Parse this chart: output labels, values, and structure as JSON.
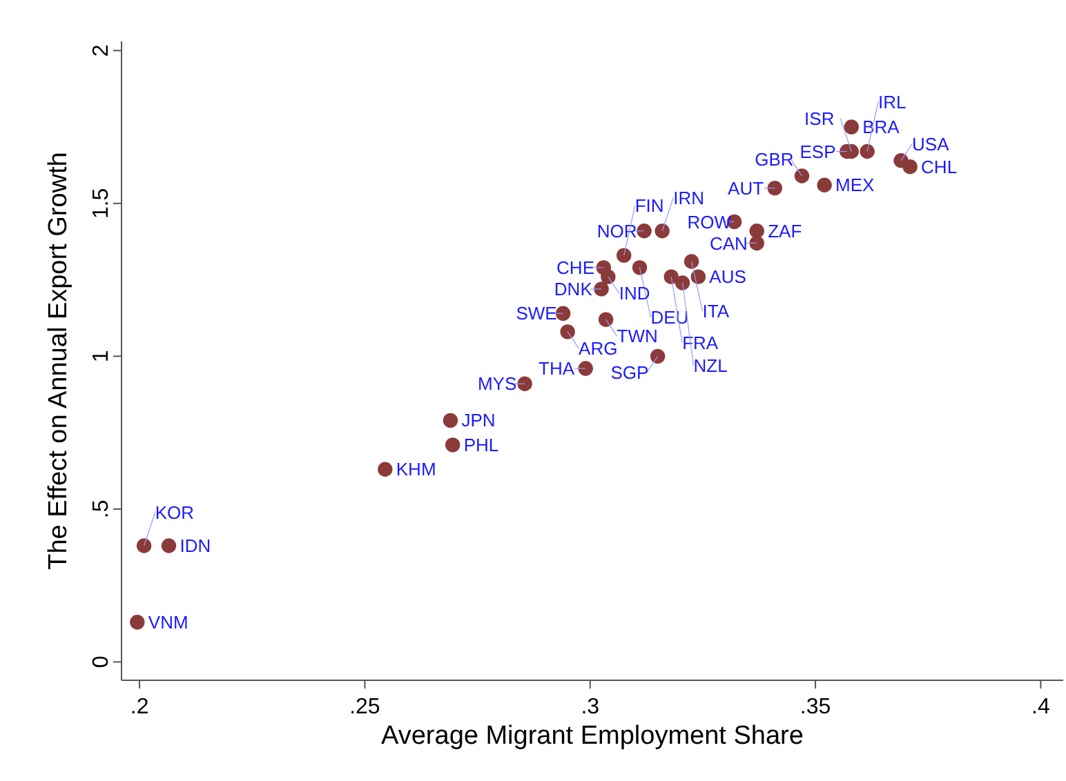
{
  "chart_data": {
    "type": "scatter",
    "xlabel": "Average Migrant Employment Share",
    "ylabel": "The Effect on Annual Export Growth",
    "xlim": [
      0.196,
      0.405
    ],
    "ylim": [
      -0.06,
      2.03
    ],
    "xticks": [
      {
        "value": 0.2,
        "label": ".2"
      },
      {
        "value": 0.25,
        "label": ".25"
      },
      {
        "value": 0.3,
        "label": ".3"
      },
      {
        "value": 0.35,
        "label": ".35"
      },
      {
        "value": 0.4,
        "label": ".4"
      }
    ],
    "yticks": [
      0,
      {
        "value": 0.5,
        "label": ".5"
      },
      1,
      1.5,
      2
    ],
    "grid": false,
    "marker": "circle",
    "series": [
      {
        "color": "#8b3a3a",
        "x": [
          0.358,
          0.357,
          0.358,
          0.3615,
          0.369,
          0.371,
          0.347,
          0.352,
          0.341,
          0.332,
          0.337,
          0.337,
          0.312,
          0.316,
          0.3075,
          0.3225,
          0.303,
          0.311,
          0.304,
          0.318,
          0.324,
          0.3205,
          0.3025,
          0.294,
          0.3035,
          0.295,
          0.315,
          0.299,
          0.2855,
          0.269,
          0.2695,
          0.2545,
          0.201,
          0.2065,
          0.1995
        ],
        "values": [
          1.75,
          1.67,
          1.67,
          1.67,
          1.64,
          1.62,
          1.59,
          1.56,
          1.55,
          1.44,
          1.41,
          1.37,
          1.41,
          1.41,
          1.33,
          1.31,
          1.29,
          1.29,
          1.26,
          1.26,
          1.26,
          1.24,
          1.22,
          1.14,
          1.12,
          1.08,
          1.0,
          0.96,
          0.91,
          0.79,
          0.71,
          0.63,
          0.38,
          0.38,
          0.13
        ]
      }
    ],
    "annotations": [
      {
        "text": "BRA",
        "x": 0.358,
        "y": 1.75
      },
      {
        "text": "ESP",
        "x": 0.357,
        "y": 1.67
      },
      {
        "text": "ISR",
        "x": 0.358,
        "y": 1.67
      },
      {
        "text": "IRL",
        "x": 0.3615,
        "y": 1.67
      },
      {
        "text": "USA",
        "x": 0.369,
        "y": 1.64
      },
      {
        "text": "CHL",
        "x": 0.371,
        "y": 1.62
      },
      {
        "text": "GBR",
        "x": 0.347,
        "y": 1.59
      },
      {
        "text": "MEX",
        "x": 0.352,
        "y": 1.56
      },
      {
        "text": "AUT",
        "x": 0.341,
        "y": 1.55
      },
      {
        "text": "ROW",
        "x": 0.332,
        "y": 1.44
      },
      {
        "text": "ZAF",
        "x": 0.337,
        "y": 1.41
      },
      {
        "text": "CAN",
        "x": 0.337,
        "y": 1.37
      },
      {
        "text": "NOR",
        "x": 0.312,
        "y": 1.41
      },
      {
        "text": "IRN",
        "x": 0.316,
        "y": 1.41
      },
      {
        "text": "FIN",
        "x": 0.3075,
        "y": 1.33
      },
      {
        "text": "ITA",
        "x": 0.3225,
        "y": 1.31
      },
      {
        "text": "CHE",
        "x": 0.303,
        "y": 1.29
      },
      {
        "text": "DEU",
        "x": 0.311,
        "y": 1.29
      },
      {
        "text": "IND",
        "x": 0.304,
        "y": 1.26
      },
      {
        "text": "FRA",
        "x": 0.318,
        "y": 1.26
      },
      {
        "text": "AUS",
        "x": 0.324,
        "y": 1.26
      },
      {
        "text": "NZL",
        "x": 0.3205,
        "y": 1.24
      },
      {
        "text": "DNK",
        "x": 0.3025,
        "y": 1.22
      },
      {
        "text": "SWE",
        "x": 0.294,
        "y": 1.14
      },
      {
        "text": "TWN",
        "x": 0.3035,
        "y": 1.12
      },
      {
        "text": "ARG",
        "x": 0.295,
        "y": 1.08
      },
      {
        "text": "SGP",
        "x": 0.315,
        "y": 1.0
      },
      {
        "text": "THA",
        "x": 0.299,
        "y": 0.96
      },
      {
        "text": "MYS",
        "x": 0.2855,
        "y": 0.91
      },
      {
        "text": "JPN",
        "x": 0.269,
        "y": 0.79
      },
      {
        "text": "PHL",
        "x": 0.2695,
        "y": 0.71
      },
      {
        "text": "KHM",
        "x": 0.2545,
        "y": 0.63
      },
      {
        "text": "KOR",
        "x": 0.201,
        "y": 0.38
      },
      {
        "text": "IDN",
        "x": 0.2065,
        "y": 0.38
      },
      {
        "text": "VNM",
        "x": 0.1995,
        "y": 0.13
      }
    ]
  }
}
